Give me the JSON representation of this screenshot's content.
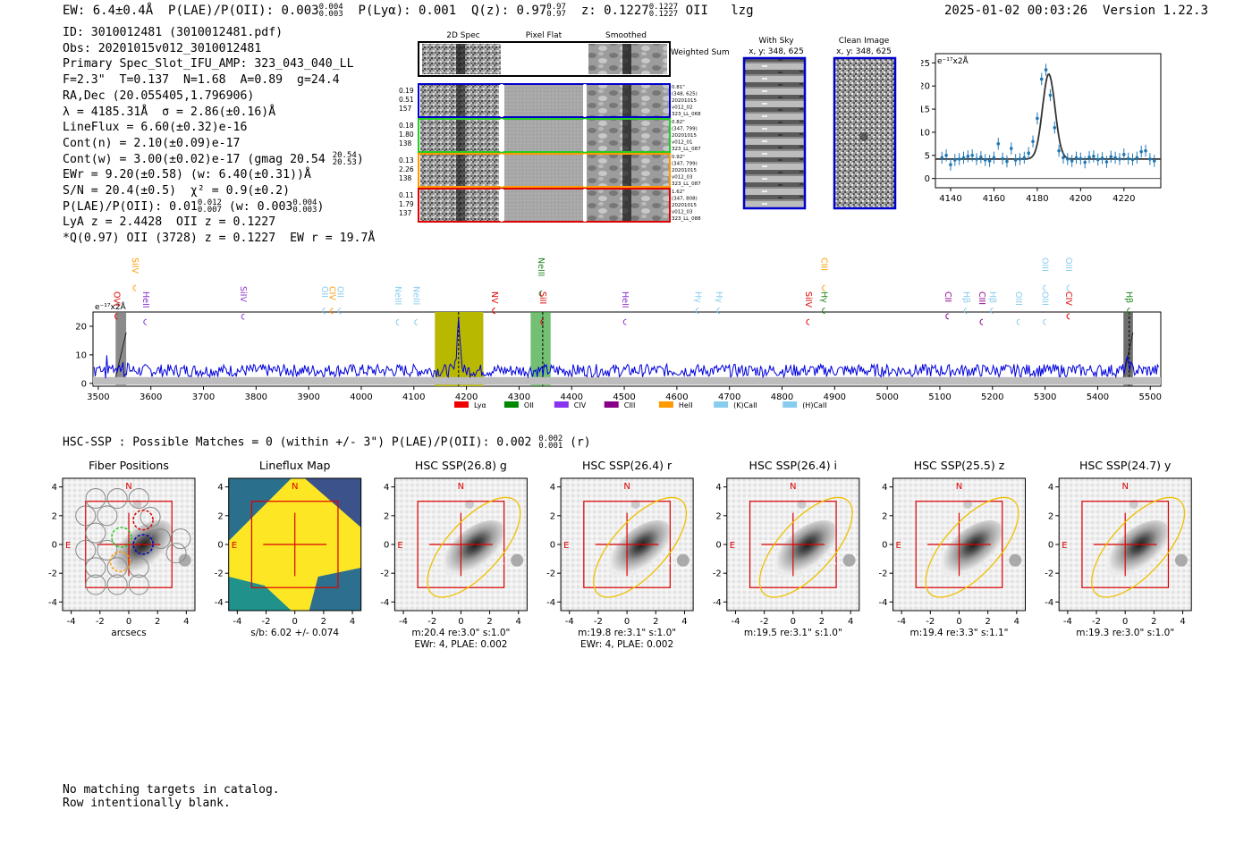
{
  "header": {
    "ew": "EW: 6.4±0.4Å",
    "plae_label": "P(LAE)/P(OII): 0.003",
    "plae_hi": "0.004",
    "plae_lo": "0.003",
    "plya": "P(Lyα): 0.001",
    "qz": "Q(z): 0.97",
    "qz_hi": "0.97",
    "qz_lo": "0.97",
    "z": "z: 0.1227",
    "z_hi": "0.1227",
    "z_lo": "0.1227",
    "line": "OII",
    "user": "lzg",
    "timestamp": "2025-01-02 00:03:26",
    "version": "Version 1.22.3"
  },
  "info_lines": [
    "ID: 3010012481 (3010012481.pdf)",
    "Obs: 20201015v012_3010012481",
    "Primary Spec_Slot_IFU_AMP: 323_043_040_LL",
    "F=2.3\"  T=0.137  N=1.68  A=0.89  g=24.4",
    "RA,Dec (20.055405,1.796906)",
    "λ = 4185.31Å  σ = 2.86(±0.16)Å",
    "LineFlux = 6.60(±0.32)e-16",
    "Cont(n) = 2.10(±0.09)e-17",
    "Cont(w) = 3.00(±0.02)e-17 (gmag 20.54",
    "EWr = 9.20(±0.58) (w: 6.40(±0.31))Å",
    "S/N = 20.4(±0.5)  χ² = 0.9(±0.2)",
    "P(LAE)/P(OII): 0.01",
    "LyA z = 2.4428  OII z = 0.1227",
    "*Q(0.97) OII (3728) z = 0.1227  EW r = 19.7Å"
  ],
  "info_extras": {
    "gmag_hi": "20.54",
    "gmag_lo": "20.53",
    "plae_hi": "0.012",
    "plae_lo": "0.007",
    "plae_w": "(w: 0.003",
    "plae_w_hi": "0.004",
    "plae_w_lo": "0.003",
    "close": ")"
  },
  "cutouts": {
    "col_headers": [
      "2D Spec",
      "Pixel Flat",
      "Smoothed"
    ],
    "weighted_sum": "Weighted Sum",
    "rows": [
      {
        "left": [
          "0.19",
          "0.51",
          "157"
        ],
        "right": [
          "0.81\"",
          "(348, 625)",
          "20201015",
          "v012_02",
          "323_LL_068"
        ],
        "color": "#0000cc"
      },
      {
        "left": [
          "0.18",
          "1.80",
          "138"
        ],
        "right": [
          "0.82\"",
          "(347, 799)",
          "20201015",
          "v012_01",
          "323_LL_087"
        ],
        "color": "#22cc22"
      },
      {
        "left": [
          "0.13",
          "2.26",
          "138"
        ],
        "right": [
          "0.92\"",
          "(347, 799)",
          "20201015",
          "v012_03",
          "323_LL_087"
        ],
        "color": "#ff9900"
      },
      {
        "left": [
          "0.11",
          "1.79",
          "137"
        ],
        "right": [
          "1.62\"",
          "(347, 808)",
          "20201015",
          "v012_03",
          "323_LL_088"
        ],
        "color": "#dd0000"
      }
    ],
    "with_sky_title": "With Sky",
    "with_sky_xy": "x, y: 348, 625",
    "clean_title": "Clean Image",
    "clean_xy": "x, y: 348, 625"
  },
  "colors": {
    "spectrum": "#0000dd",
    "fit": "#333333",
    "zoom_points": "#1f77b4",
    "region": "#dd0000",
    "ellipse": "#f0c000",
    "olive": "#b8b800",
    "green_band": "#44aa44"
  },
  "zoom_chart": {
    "type": "line",
    "ylabel": "e⁻¹⁷x2Å",
    "xticks": [
      4140,
      4160,
      4180,
      4200,
      4220
    ],
    "yticks": [
      0,
      5,
      10,
      15,
      20,
      25
    ],
    "xlim": [
      4133,
      4237
    ],
    "ylim": [
      -2,
      27
    ],
    "points_x": [
      4136,
      4138,
      4140,
      4142,
      4144,
      4146,
      4148,
      4150,
      4152,
      4154,
      4156,
      4158,
      4160,
      4162,
      4164,
      4166,
      4168,
      4170,
      4172,
      4174,
      4176,
      4178,
      4180,
      4182,
      4184,
      4186,
      4188,
      4190,
      4192,
      4194,
      4196,
      4198,
      4200,
      4202,
      4204,
      4206,
      4208,
      4210,
      4212,
      4214,
      4216,
      4218,
      4220,
      4222,
      4224,
      4226,
      4228,
      4230,
      4232,
      4234
    ],
    "points_y": [
      4.5,
      5,
      3,
      4,
      4.2,
      4.5,
      4.8,
      5,
      4.2,
      4.6,
      4,
      3.8,
      4.5,
      7.5,
      4.3,
      3.7,
      6.5,
      4,
      4.2,
      4.5,
      5.5,
      8,
      13,
      21.5,
      23.5,
      18,
      11,
      6,
      4.5,
      4.2,
      3.8,
      4.5,
      4.3,
      3.5,
      4.6,
      4.8,
      4.1,
      4.4,
      3.6,
      4.7,
      4.5,
      4.2,
      5.2,
      4.3,
      4.1,
      4.5,
      5.8,
      6,
      4.2,
      3.8
    ],
    "fit_center": 4185.3,
    "fit_sigma": 2.86,
    "fit_amp": 18.4,
    "fit_cont": 4.2
  },
  "spectrum_chart": {
    "type": "line",
    "ylabel": "e⁻¹⁷x2Å",
    "xlim": [
      3490,
      5520
    ],
    "ylim": [
      -1,
      25
    ],
    "xticks": [
      3500,
      3600,
      3700,
      3800,
      3900,
      4000,
      4100,
      4200,
      4300,
      4400,
      4500,
      4600,
      4700,
      4800,
      4900,
      5000,
      5100,
      5200,
      5300,
      5400,
      5500
    ],
    "yticks": [
      0,
      10,
      20
    ],
    "baseline": 4.5,
    "peak_center": 4185,
    "peak_amp": 18,
    "line_markers": [
      {
        "label": "SiIV",
        "x": 3570,
        "color": "#ff9900",
        "row": 0
      },
      {
        "label": "OVI",
        "x": 3535,
        "color": "#dd0000",
        "row": 2
      },
      {
        "label": "HeII",
        "x": 3590,
        "color": "#8833cc",
        "row": 2
      },
      {
        "label": "SiIV",
        "x": 3776,
        "color": "#8833cc",
        "row": 1
      },
      {
        "label": "OII",
        "x": 3930,
        "color": "#88ccee",
        "row": 1
      },
      {
        "label": "CIV",
        "x": 3945,
        "color": "#ff9900",
        "row": 1
      },
      {
        "label": "OII",
        "x": 3960,
        "color": "#88ccee",
        "row": 1
      },
      {
        "label": "NeIII",
        "x": 4070,
        "color": "#88ccee",
        "row": 1
      },
      {
        "label": "NeIII",
        "x": 4105,
        "color": "#88ccee",
        "row": 1
      },
      {
        "label": "NV",
        "x": 4253,
        "color": "#dd0000",
        "row": 2
      },
      {
        "label": "NeIII",
        "x": 4342,
        "color": "#228822",
        "row": 0
      },
      {
        "label": "SiII",
        "x": 4345,
        "color": "#dd0000",
        "row": 2
      },
      {
        "label": "HeII",
        "x": 4502,
        "color": "#8833cc",
        "row": 2
      },
      {
        "label": "Hγ",
        "x": 4640,
        "color": "#88ccee",
        "row": 2
      },
      {
        "label": "Hγ",
        "x": 4680,
        "color": "#88ccee",
        "row": 2
      },
      {
        "label": "SiIV",
        "x": 4850,
        "color": "#dd0000",
        "row": 2
      },
      {
        "label": "CIII",
        "x": 4880,
        "color": "#ff9900",
        "row": 0
      },
      {
        "label": "Hγ",
        "x": 4880,
        "color": "#228822",
        "row": 2
      },
      {
        "label": "CII",
        "x": 5115,
        "color": "#880088",
        "row": 2
      },
      {
        "label": "Hβ",
        "x": 5150,
        "color": "#88ccee",
        "row": 2
      },
      {
        "label": "CIII",
        "x": 5180,
        "color": "#880088",
        "row": 2
      },
      {
        "label": "Hβ",
        "x": 5200,
        "color": "#88ccee",
        "row": 2
      },
      {
        "label": "OIII",
        "x": 5250,
        "color": "#88ccee",
        "row": 2
      },
      {
        "label": "OIII",
        "x": 5300,
        "color": "#88ccee",
        "row": 2
      },
      {
        "label": "OIII",
        "x": 5300,
        "color": "#88ccee",
        "row": 0
      },
      {
        "label": "OIII",
        "x": 5345,
        "color": "#88ccee",
        "row": 0
      },
      {
        "label": "CIV",
        "x": 5345,
        "color": "#dd0000",
        "row": 2
      },
      {
        "label": "Hβ",
        "x": 5460,
        "color": "#228822",
        "row": 2
      }
    ],
    "legend": [
      {
        "label": "Lyα",
        "color": "#ee0000"
      },
      {
        "label": "OII",
        "color": "#008800"
      },
      {
        "label": "CIV",
        "color": "#8833ee"
      },
      {
        "label": "CIII",
        "color": "#880088"
      },
      {
        "label": "HeII",
        "color": "#ff9900"
      },
      {
        "label": "(K)CaII",
        "color": "#88ccee"
      },
      {
        "label": "(H)CaII",
        "color": "#88ccee"
      }
    ]
  },
  "hsc": {
    "title": "HSC-SSP : Possible Matches = 0 (within +/- 3\")  P(LAE)/P(OII): 0.002",
    "title_hi": "0.002",
    "title_lo": "0.001",
    "title_tail": "(r)",
    "ticks": [
      -4,
      -2,
      0,
      2,
      4
    ],
    "north": "N",
    "east": "E",
    "panels": [
      {
        "title": "Fiber Positions",
        "caption1": "arcsecs",
        "caption2": ""
      },
      {
        "title": "Lineflux Map",
        "caption1": "s/b: 6.02 +/- 0.074",
        "caption2": ""
      },
      {
        "title": "HSC SSP(26.8) g",
        "caption1": "m:20.4  re:3.0\"  s:1.0\"",
        "caption2": "EWr: 4, PLAE: 0.002"
      },
      {
        "title": "HSC SSP(26.4) r",
        "caption1": "m:19.8  re:3.1\"  s:1.0\"",
        "caption2": "EWr: 4, PLAE: 0.002"
      },
      {
        "title": "HSC SSP(26.4) i",
        "caption1": "m:19.5  re:3.1\"  s:1.0\"",
        "caption2": ""
      },
      {
        "title": "HSC SSP(25.5) z",
        "caption1": "m:19.4  re:3.3\"  s:1.1\"",
        "caption2": ""
      },
      {
        "title": "HSC SSP(24.7) y",
        "caption1": "m:19.3  re:3.0\"  s:1.0\"",
        "caption2": ""
      }
    ]
  },
  "notes": [
    "No matching targets in catalog.",
    "Row intentionally blank."
  ]
}
